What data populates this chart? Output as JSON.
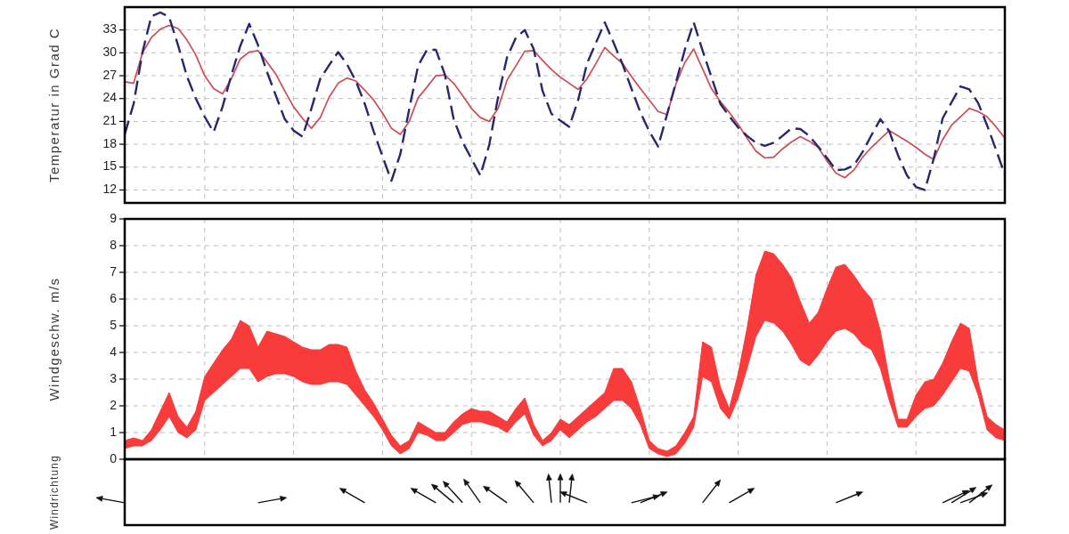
{
  "chart_data": [
    {
      "type": "line",
      "ylabel": "Temperatur in Grad C",
      "tick_labels": "y",
      "grid": true,
      "ylim": [
        10.3,
        36
      ],
      "yticks": [
        12,
        15,
        18,
        21,
        24,
        27,
        30,
        33
      ],
      "categories": [
        null,
        null,
        null,
        null,
        null,
        null,
        null,
        null,
        null,
        null,
        null,
        null,
        null,
        null,
        null,
        null,
        null,
        null,
        null,
        null,
        null,
        null,
        null,
        null,
        null,
        null,
        null,
        null,
        null,
        null,
        null,
        null,
        null,
        null,
        null,
        null,
        null,
        null,
        null,
        null,
        null,
        null,
        null,
        null,
        null,
        null,
        null,
        null,
        null,
        null,
        null,
        null,
        null,
        null,
        null,
        null,
        null,
        null,
        null,
        null,
        null,
        null,
        null,
        null,
        null,
        null,
        null,
        null,
        null,
        null,
        null,
        null,
        null,
        null,
        null,
        null,
        null,
        null,
        null,
        null,
        null,
        null,
        null,
        null,
        null,
        null,
        null,
        null,
        null,
        null,
        null,
        null,
        null,
        null,
        null,
        null,
        null,
        null,
        null,
        null
      ],
      "series": [
        {
          "color": "#cc4d55",
          "line_style": "solid",
          "values": [
            26.2,
            26.0,
            30.0,
            32.0,
            33.1,
            33.6,
            33.2,
            31.7,
            29.7,
            27.0,
            25.3,
            24.6,
            26.6,
            29.2,
            30.1,
            30.3,
            28.8,
            27.2,
            25.0,
            22.9,
            21.4,
            20.1,
            21.5,
            24.2,
            26.0,
            26.7,
            26.3,
            25.1,
            23.8,
            22.1,
            20.1,
            19.3,
            21.0,
            24.1,
            25.5,
            27.0,
            27.1,
            26.0,
            24.4,
            22.7,
            21.5,
            21.0,
            22.7,
            26.4,
            28.3,
            30.2,
            30.3,
            29.0,
            27.8,
            26.8,
            26.0,
            25.2,
            26.6,
            28.6,
            30.7,
            29.6,
            28.6,
            26.9,
            25.3,
            23.8,
            22.3,
            21.9,
            25.9,
            28.7,
            30.5,
            27.9,
            25.3,
            23.6,
            22.2,
            20.6,
            18.8,
            17.1,
            16.2,
            16.3,
            17.4,
            18.3,
            19.0,
            18.4,
            17.6,
            15.8,
            14.2,
            13.6,
            14.6,
            16.3,
            17.6,
            18.7,
            19.8,
            19.1,
            18.4,
            17.6,
            16.7,
            16.0,
            18.6,
            20.5,
            21.6,
            22.7,
            22.3,
            21.6,
            20.3,
            18.8
          ]
        },
        {
          "color": "#27276e",
          "line_style": "dashed",
          "values": [
            19.3,
            23.3,
            30.1,
            34.8,
            35.3,
            34.7,
            31.0,
            26.9,
            24.0,
            21.6,
            19.6,
            22.9,
            27.1,
            30.9,
            33.8,
            31.0,
            27.5,
            24.4,
            21.3,
            19.8,
            19.0,
            22.7,
            26.6,
            28.4,
            30.1,
            28.5,
            26.3,
            23.3,
            19.7,
            16.4,
            13.2,
            16.7,
            22.6,
            28.3,
            30.4,
            30.4,
            27.2,
            21.3,
            18.3,
            16.1,
            13.9,
            17.9,
            24.2,
            29.4,
            32.0,
            33.0,
            30.5,
            25.0,
            22.0,
            21.1,
            20.3,
            23.8,
            28.6,
            31.3,
            34.0,
            31.3,
            28.5,
            25.3,
            22.2,
            19.7,
            17.7,
            21.9,
            26.1,
            30.4,
            34.0,
            30.3,
            26.8,
            23.3,
            21.7,
            20.2,
            19.1,
            18.2,
            17.8,
            18.2,
            19.1,
            20.1,
            20.0,
            19.1,
            17.7,
            16.2,
            14.6,
            14.7,
            15.2,
            17.0,
            19.2,
            21.3,
            19.7,
            16.5,
            13.9,
            12.4,
            12.0,
            16.1,
            21.4,
            23.5,
            25.6,
            25.2,
            23.4,
            20.5,
            17.3,
            14.0
          ]
        }
      ]
    },
    {
      "type": "area",
      "ylabel": "Windgeschw. m/s",
      "tick_labels": "y",
      "grid": true,
      "ylim": [
        0,
        9
      ],
      "yticks": [
        0,
        1,
        2,
        3,
        4,
        5,
        6,
        7,
        8,
        9
      ],
      "categories": [
        null,
        null,
        null,
        null,
        null,
        null,
        null,
        null,
        null,
        null,
        null,
        null,
        null,
        null,
        null,
        null,
        null,
        null,
        null,
        null,
        null,
        null,
        null,
        null,
        null,
        null,
        null,
        null,
        null,
        null,
        null,
        null,
        null,
        null,
        null,
        null,
        null,
        null,
        null,
        null,
        null,
        null,
        null,
        null,
        null,
        null,
        null,
        null,
        null,
        null,
        null,
        null,
        null,
        null,
        null,
        null,
        null,
        null,
        null,
        null,
        null,
        null,
        null,
        null,
        null,
        null,
        null,
        null,
        null,
        null,
        null,
        null,
        null,
        null,
        null,
        null,
        null,
        null,
        null,
        null,
        null,
        null,
        null,
        null,
        null,
        null,
        null,
        null,
        null,
        null,
        null,
        null,
        null,
        null,
        null,
        null,
        null,
        null,
        null,
        null
      ],
      "series": [
        {
          "color": "#f83c3c",
          "values": [
            null,
            null,
            null,
            null,
            null,
            null,
            null,
            null,
            null,
            null,
            null,
            null,
            null,
            null,
            null,
            null,
            null,
            null,
            null,
            null,
            null,
            null,
            null,
            null,
            null,
            null,
            null,
            null,
            null,
            null,
            null,
            null,
            null,
            null,
            null,
            null,
            null,
            null,
            null,
            null,
            null,
            null,
            null,
            null,
            null,
            null,
            null,
            null,
            null,
            null,
            null,
            null,
            null,
            null,
            null,
            null,
            null,
            null,
            null,
            null,
            null,
            null,
            null,
            null,
            null,
            null,
            null,
            null,
            null,
            null,
            null,
            null,
            null,
            null,
            null,
            null,
            null,
            null,
            null,
            null,
            null,
            null,
            null,
            null,
            null,
            null,
            null,
            null,
            null,
            null,
            null,
            null,
            null,
            null,
            null,
            null,
            null,
            null,
            null,
            null
          ],
          "upper": [
            0.7,
            0.8,
            0.7,
            1.1,
            1.8,
            2.5,
            1.6,
            1.2,
            1.8,
            3.1,
            3.6,
            4.1,
            4.5,
            5.2,
            5.0,
            4.2,
            4.8,
            4.7,
            4.6,
            4.4,
            4.2,
            4.1,
            4.1,
            4.3,
            4.3,
            4.2,
            3.3,
            2.6,
            2.1,
            1.5,
            0.9,
            0.5,
            0.7,
            1.4,
            1.2,
            1.0,
            1.0,
            1.4,
            1.7,
            1.9,
            1.8,
            1.8,
            1.6,
            1.4,
            1.9,
            2.3,
            1.3,
            0.7,
            1.0,
            1.5,
            1.3,
            1.6,
            1.9,
            2.2,
            2.5,
            3.4,
            3.4,
            2.9,
            1.9,
            0.7,
            0.4,
            0.3,
            0.5,
            1.0,
            1.6,
            4.4,
            4.2,
            2.7,
            1.9,
            3.2,
            4.9,
            6.9,
            7.8,
            7.7,
            7.3,
            6.8,
            5.9,
            5.1,
            5.5,
            6.4,
            7.2,
            7.3,
            6.9,
            6.4,
            6.0,
            4.8,
            3.0,
            1.5,
            1.5,
            2.4,
            2.9,
            3.0,
            3.6,
            4.4,
            5.1,
            4.9,
            2.9,
            1.6,
            1.3,
            1.1
          ],
          "lower": [
            0.4,
            0.5,
            0.5,
            0.7,
            1.1,
            1.6,
            1.0,
            0.8,
            1.1,
            2.2,
            2.5,
            2.8,
            3.1,
            3.4,
            3.4,
            2.9,
            3.1,
            3.2,
            3.2,
            3.1,
            2.9,
            2.8,
            2.8,
            2.9,
            2.9,
            2.8,
            2.4,
            2.0,
            1.6,
            1.1,
            0.5,
            0.2,
            0.4,
            1.0,
            0.9,
            0.7,
            0.7,
            1.0,
            1.3,
            1.4,
            1.4,
            1.3,
            1.2,
            1.0,
            1.4,
            1.7,
            0.9,
            0.5,
            0.7,
            1.1,
            0.8,
            1.1,
            1.4,
            1.6,
            1.9,
            2.2,
            2.2,
            1.9,
            1.3,
            0.4,
            0.2,
            0.1,
            0.2,
            0.6,
            1.2,
            3.1,
            2.9,
            1.9,
            1.5,
            2.3,
            3.4,
            4.6,
            5.2,
            5.1,
            4.8,
            4.3,
            3.7,
            3.5,
            3.9,
            4.4,
            4.8,
            4.9,
            4.7,
            4.3,
            4.1,
            3.4,
            2.2,
            1.2,
            1.2,
            1.6,
            1.9,
            2.0,
            2.4,
            2.9,
            3.4,
            3.3,
            2.4,
            1.1,
            0.8,
            0.7
          ]
        }
      ]
    },
    {
      "type": "other",
      "ylabel": "Windrichtung",
      "categories": [
        null,
        null,
        null,
        null,
        null,
        null,
        null,
        null,
        null,
        null,
        null,
        null,
        null,
        null,
        null,
        null,
        null,
        null,
        null,
        null,
        null,
        null,
        null,
        null,
        null,
        null,
        null,
        null,
        null,
        null,
        null,
        null,
        null,
        null,
        null,
        null,
        null,
        null,
        null,
        null,
        null,
        null,
        null,
        null,
        null,
        null,
        null,
        null,
        null,
        null,
        null,
        null,
        null,
        null,
        null,
        null,
        null,
        null,
        null,
        null,
        null,
        null,
        null,
        null,
        null,
        null,
        null,
        null,
        null,
        null,
        null,
        null,
        null,
        null,
        null,
        null,
        null,
        null,
        null,
        null,
        null,
        null,
        null,
        null,
        null,
        null,
        null,
        null,
        null,
        null,
        null,
        null,
        null,
        null,
        null,
        null,
        null,
        null,
        null,
        null
      ]
    }
  ]
}
